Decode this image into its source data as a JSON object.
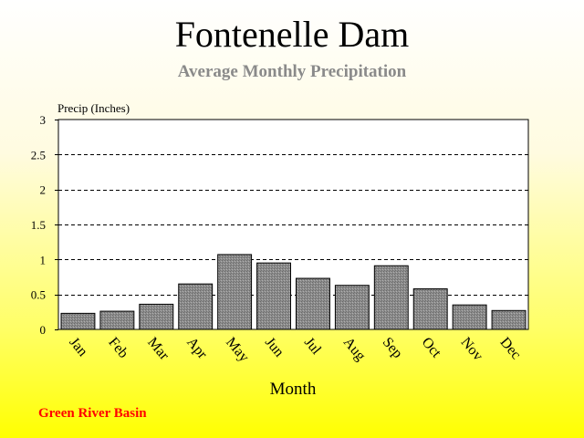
{
  "page": {
    "title": "Fontenelle Dam",
    "subtitle": "Average Monthly Precipitation",
    "footer": "Green River Basin",
    "footer_color": "#ff0000",
    "subtitle_color": "#8a8a8a"
  },
  "chart_data": {
    "type": "bar",
    "title": "Fontenelle Dam",
    "subtitle": "Average Monthly Precipitation",
    "xlabel": "Month",
    "ylabel": "Precip (Inches)",
    "categories": [
      "Jan",
      "Feb",
      "Mar",
      "Apr",
      "May",
      "Jun",
      "Jul",
      "Aug",
      "Sep",
      "Oct",
      "Nov",
      "Dec"
    ],
    "values": [
      0.23,
      0.26,
      0.36,
      0.65,
      1.07,
      0.95,
      0.73,
      0.63,
      0.91,
      0.58,
      0.35,
      0.27
    ],
    "ylim": [
      0,
      3
    ],
    "yticks": [
      0,
      0.5,
      1,
      1.5,
      2,
      2.5,
      3
    ],
    "ytick_labels": [
      "0",
      "0.5",
      "1",
      "1.5",
      "2",
      "2.5",
      "3"
    ],
    "grid": "horizontal dashed",
    "bar_color": "#808080",
    "plot_background": "#ffffff"
  }
}
